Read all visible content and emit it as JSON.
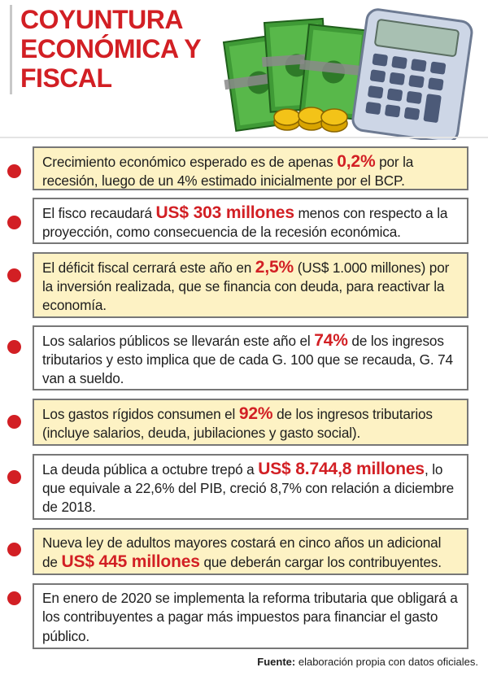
{
  "title": {
    "line1": "COYUNTURA",
    "line2": "ECONÓMICA Y",
    "line3": "FISCAL"
  },
  "colors": {
    "accent": "#d21f24",
    "yellow_bg": "#fdf2c4",
    "border": "#777777"
  },
  "illustration": {
    "icons": [
      "banknotes-icon",
      "coins-icon",
      "calculator-icon"
    ]
  },
  "items": [
    {
      "style": "yellow",
      "pre": "Crecimiento económico esperado es de apenas ",
      "highlight": "0,2%",
      "post": " por la recesión, luego de un 4% estimado inicialmente por el BCP."
    },
    {
      "style": "white",
      "pre": "El fisco recaudará ",
      "highlight": "US$ 303 millones",
      "post": " menos con respecto a la proyección, como consecuencia de la recesión económica."
    },
    {
      "style": "yellow",
      "pre": "El déficit fiscal cerrará este año en ",
      "highlight": "2,5%",
      "post": " (US$ 1.000 millones) por la  inversión realizada, que se financia con deuda, para reactivar la economía."
    },
    {
      "style": "white",
      "pre": "Los salarios públicos se llevarán este año el ",
      "highlight": "74%",
      "post": " de los ingresos tributarios y esto implica que de cada G. 100 que se recauda, G. 74 van a sueldo."
    },
    {
      "style": "yellow",
      "pre": "Los gastos rígidos consumen el ",
      "highlight": "92%",
      "post": " de los ingresos tributarios (incluye salarios, deuda, jubilaciones y gasto social)."
    },
    {
      "style": "white",
      "pre": "La deuda pública a octubre trepó a ",
      "highlight": "US$ 8.744,8 millones",
      "post": ", lo que equivale a 22,6% del PIB, creció 8,7% con relación a diciembre de 2018."
    },
    {
      "style": "yellow",
      "pre": "Nueva ley de adultos mayores costará en cinco años un adicional de ",
      "highlight": "US$ 445 millones",
      "post": " que deberán cargar los contribuyentes."
    },
    {
      "style": "white",
      "pre": "En enero de 2020 se implementa la reforma tributaria que obligará a los contribuyentes a pagar más impuestos para financiar el gasto público.",
      "highlight": "",
      "post": ""
    }
  ],
  "source": {
    "label": "Fuente:",
    "text": " elaboración propia con datos oficiales."
  }
}
